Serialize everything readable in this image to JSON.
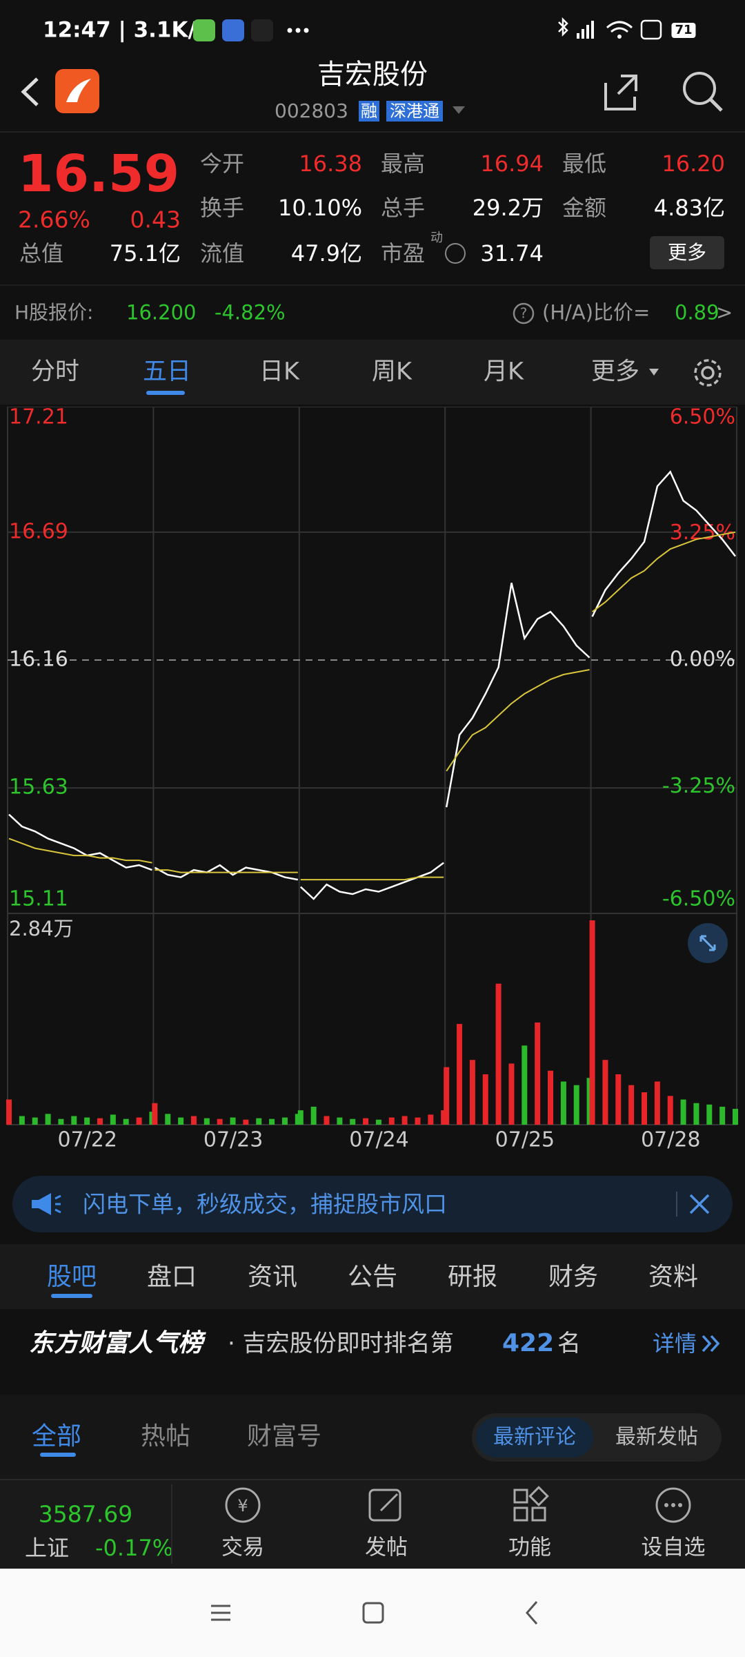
{
  "status": {
    "time": "12:47 | 3.1K/s",
    "battery": "71"
  },
  "header": {
    "title": "吉宏股份",
    "code": "002803",
    "tags": [
      "融",
      "深港通"
    ]
  },
  "quote": {
    "price": "16.59",
    "change_pct": "2.66%",
    "change": "0.43",
    "stats": [
      {
        "label": "今开",
        "value": "16.38"
      },
      {
        "label": "最高",
        "value": "16.94"
      },
      {
        "label": "最低",
        "value": "16.20"
      },
      {
        "label": "换手",
        "value": "10.10%"
      },
      {
        "label": "总手",
        "value": "29.2万"
      },
      {
        "label": "金额",
        "value": "4.83亿"
      },
      {
        "label": "总值",
        "value": "75.1亿"
      },
      {
        "label": "流值",
        "value": "47.9亿"
      },
      {
        "label": "市盈",
        "value": "31.74",
        "sup": "动"
      }
    ],
    "more": "更多"
  },
  "h_share": {
    "label": "H股报价:",
    "price": "16.200",
    "change": "-4.82%",
    "ratio_label": "(H/A)比价=",
    "ratio": "0.89"
  },
  "chart_tabs": [
    "分时",
    "五日",
    "日K",
    "周K",
    "月K",
    "更多"
  ],
  "chart_data": {
    "type": "line",
    "categories": [
      "07/22",
      "07/23",
      "07/24",
      "07/25",
      "07/28"
    ],
    "ylim": [
      15.11,
      17.21
    ],
    "yticks": [
      17.21,
      16.69,
      16.16,
      15.63,
      15.11
    ],
    "y2lim": [
      -6.5,
      6.5
    ],
    "y2ticks": [
      {
        "value": 6.5,
        "label": "6.50%"
      },
      {
        "value": 3.25,
        "label": "3.25%"
      },
      {
        "value": 0,
        "label": "0.00%"
      },
      {
        "value": -3.25,
        "label": "-3.25%"
      },
      {
        "value": -6.5,
        "label": "-6.50%"
      }
    ],
    "series": [
      {
        "color": "#ffffff",
        "values": [
          [
            15.52,
            15.47,
            15.45,
            15.42,
            15.4,
            15.38,
            15.35,
            15.36,
            15.33,
            15.3,
            15.31,
            15.29
          ],
          [
            15.3,
            15.27,
            15.26,
            15.29,
            15.28,
            15.31,
            15.27,
            15.3,
            15.29,
            15.28,
            15.26,
            15.25
          ],
          [
            15.22,
            15.17,
            15.23,
            15.2,
            15.19,
            15.21,
            15.2,
            15.22,
            15.24,
            15.26,
            15.28,
            15.32
          ],
          [
            15.55,
            15.85,
            15.92,
            16.02,
            16.13,
            16.48,
            16.25,
            16.33,
            16.36,
            16.3,
            16.22,
            16.17
          ],
          [
            16.34,
            16.45,
            16.52,
            16.58,
            16.65,
            16.88,
            16.94,
            16.82,
            16.78,
            16.72,
            16.66,
            16.59
          ]
        ]
      },
      {
        "color": "#d9c63c",
        "values": [
          [
            15.42,
            15.4,
            15.38,
            15.37,
            15.36,
            15.35,
            15.35,
            15.34,
            15.34,
            15.33,
            15.33,
            15.32
          ],
          [
            15.29,
            15.29,
            15.28,
            15.28,
            15.28,
            15.28,
            15.28,
            15.28,
            15.28,
            15.28,
            15.28,
            15.28
          ],
          [
            15.25,
            15.25,
            15.25,
            15.25,
            15.25,
            15.25,
            15.25,
            15.25,
            15.25,
            15.26,
            15.26,
            15.26
          ],
          [
            15.7,
            15.78,
            15.85,
            15.88,
            15.93,
            15.98,
            16.02,
            16.05,
            16.08,
            16.1,
            16.11,
            16.12
          ],
          [
            16.36,
            16.4,
            16.45,
            16.5,
            16.53,
            16.58,
            16.62,
            16.64,
            16.66,
            16.67,
            16.68,
            16.69
          ]
        ]
      }
    ],
    "volume": {
      "type": "bar",
      "up_color": "#e8262a",
      "down_color": "#2cb92c",
      "ylim": [
        0,
        2.84
      ],
      "yticks": [
        {
          "value": 2.84,
          "label": "2.84万"
        }
      ],
      "values": [
        [
          0.35,
          0.12,
          0.1,
          0.15,
          0.08,
          0.12,
          0.1,
          0.09,
          0.14,
          0.08,
          0.1,
          0.18
        ],
        [
          0.3,
          0.15,
          0.1,
          0.12,
          0.09,
          0.08,
          0.1,
          0.07,
          0.09,
          0.08,
          0.1,
          0.15
        ],
        [
          0.2,
          0.25,
          0.12,
          0.1,
          0.08,
          0.09,
          0.07,
          0.1,
          0.12,
          0.1,
          0.14,
          0.2
        ],
        [
          0.8,
          1.4,
          0.9,
          0.7,
          1.96,
          0.85,
          1.1,
          1.42,
          0.75,
          0.6,
          0.55,
          0.65
        ],
        [
          2.84,
          0.9,
          0.7,
          0.55,
          0.45,
          0.6,
          0.4,
          0.35,
          0.3,
          0.28,
          0.25,
          0.22
        ]
      ]
    }
  },
  "banner": "闪电下单，秒级成交，捕捉股市风口",
  "section_tabs": [
    "股吧",
    "盘口",
    "资讯",
    "公告",
    "研报",
    "财务",
    "资料"
  ],
  "rank": {
    "brand": "东方财富人气榜",
    "text": "· 吉宏股份即时排名第",
    "rank": "422",
    "unit": "名",
    "link": "详情"
  },
  "post_tabs": [
    "全部",
    "热帖",
    "财富号"
  ],
  "sort_buttons": [
    "最新评论",
    "最新发帖"
  ],
  "bottom": {
    "index_value": "3587.69",
    "index_name": "上证",
    "index_change": "-0.17%",
    "items": [
      "交易",
      "发帖",
      "功能",
      "设自选"
    ]
  }
}
